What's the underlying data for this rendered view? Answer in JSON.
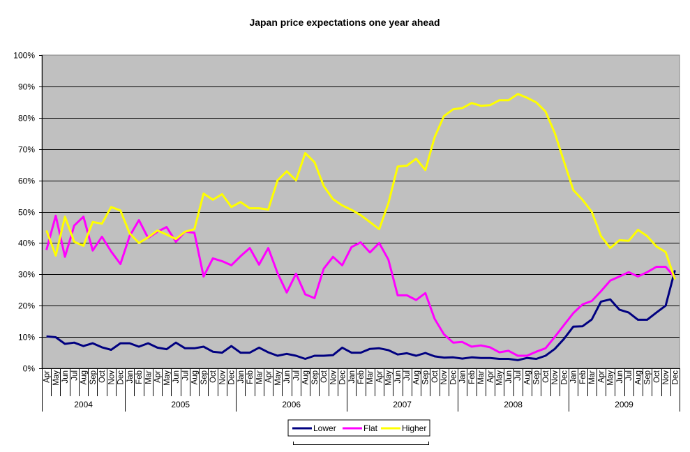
{
  "chart_data": {
    "type": "line",
    "title": "Japan price expectations one year ahead",
    "xlabel": "",
    "ylabel": "",
    "ylim": [
      0,
      100
    ],
    "yticks": [
      "0%",
      "10%",
      "20%",
      "30%",
      "40%",
      "50%",
      "60%",
      "70%",
      "80%",
      "90%",
      "100%"
    ],
    "grid": true,
    "legend_position": "bottom",
    "plot_background": "#c0c0c0",
    "months": [
      "Apr",
      "May",
      "Jun",
      "Jul",
      "Aug",
      "Sep",
      "Oct",
      "Nov",
      "Dec",
      "Jan",
      "Feb",
      "Mar",
      "Apr",
      "May",
      "Jun",
      "Jul",
      "Aug",
      "Sep",
      "Oct",
      "Nov",
      "Dec",
      "Jan",
      "Feb",
      "Mar",
      "Apr",
      "May",
      "Jun",
      "Jul",
      "Aug",
      "Sep",
      "Oct",
      "Nov",
      "Dec",
      "Jan",
      "Feb",
      "Mar",
      "Apr",
      "May",
      "Jun",
      "Jul",
      "Aug",
      "Sep",
      "Oct",
      "Nov",
      "Dec",
      "Jan",
      "Feb",
      "Mar",
      "Apr",
      "May",
      "Jun",
      "Jul",
      "Aug",
      "Sep",
      "Oct",
      "Nov",
      "Dec",
      "Jan",
      "Feb",
      "Mar",
      "Apr",
      "May",
      "Jun",
      "Jul",
      "Aug",
      "Sep",
      "Oct",
      "Nov",
      "Dec"
    ],
    "years": [
      {
        "label": "2004",
        "months": 9
      },
      {
        "label": "2005",
        "months": 12
      },
      {
        "label": "2006",
        "months": 12
      },
      {
        "label": "2007",
        "months": 12
      },
      {
        "label": "2008",
        "months": 12
      },
      {
        "label": "2009",
        "months": 12
      }
    ],
    "series": [
      {
        "name": "Lower",
        "color": "#000080",
        "values": [
          10.2,
          9.9,
          7.8,
          8.2,
          7.1,
          8.0,
          6.7,
          5.9,
          8.0,
          8.0,
          6.9,
          8.0,
          6.6,
          6.1,
          8.2,
          6.4,
          6.4,
          6.9,
          5.3,
          5.0,
          7.1,
          5.0,
          5.0,
          6.6,
          5.1,
          4.0,
          4.6,
          4.0,
          3.0,
          4.0,
          4.0,
          4.2,
          6.6,
          5.0,
          5.0,
          6.2,
          6.4,
          5.8,
          4.4,
          4.8,
          4.0,
          4.9,
          3.8,
          3.4,
          3.5,
          3.1,
          3.5,
          3.3,
          3.3,
          3.0,
          3.0,
          2.6,
          3.3,
          3.0,
          4.0,
          6.2,
          9.4,
          13.3,
          13.4,
          15.6,
          21.3,
          22.0,
          18.7,
          17.8,
          15.5,
          15.5,
          17.8,
          20.0,
          31.3
        ]
      },
      {
        "name": "Flat",
        "color": "#ff00ff",
        "values": [
          37.8,
          48.7,
          35.6,
          45.6,
          48.4,
          37.6,
          42.0,
          37.3,
          33.3,
          42.2,
          47.3,
          41.6,
          43.6,
          45.1,
          40.4,
          43.6,
          43.3,
          29.3,
          35.1,
          34.2,
          32.9,
          35.8,
          38.4,
          33.1,
          38.4,
          30.4,
          24.2,
          30.2,
          23.6,
          22.4,
          31.8,
          35.6,
          32.9,
          38.7,
          40.2,
          37.0,
          40.0,
          34.7,
          23.3,
          23.3,
          21.8,
          24.0,
          15.8,
          10.9,
          8.2,
          8.4,
          6.9,
          7.3,
          6.7,
          5.1,
          5.6,
          4.0,
          4.0,
          5.3,
          6.4,
          10.0,
          13.8,
          17.6,
          20.4,
          21.5,
          24.6,
          28.0,
          29.3,
          30.7,
          29.3,
          30.7,
          32.4,
          32.4,
          29.0
        ]
      },
      {
        "name": "Higher",
        "color": "#ffff00",
        "values": [
          44.0,
          36.0,
          48.4,
          40.4,
          39.1,
          46.7,
          46.2,
          51.5,
          50.4,
          43.1,
          40.0,
          41.8,
          44.0,
          42.7,
          41.3,
          43.6,
          44.4,
          55.8,
          53.8,
          55.6,
          51.5,
          53.1,
          51.1,
          51.1,
          50.7,
          60.0,
          62.9,
          60.0,
          68.7,
          65.8,
          58.2,
          54.0,
          52.0,
          50.6,
          48.9,
          46.7,
          44.4,
          52.7,
          64.4,
          64.7,
          66.9,
          63.3,
          73.8,
          80.5,
          82.7,
          83.1,
          84.7,
          83.8,
          84.0,
          85.6,
          85.6,
          87.6,
          86.4,
          84.9,
          82.0,
          75.1,
          66.0,
          56.9,
          53.8,
          50.0,
          42.2,
          38.4,
          40.9,
          40.7,
          44.2,
          42.2,
          38.9,
          37.1,
          28.4
        ]
      }
    ]
  }
}
